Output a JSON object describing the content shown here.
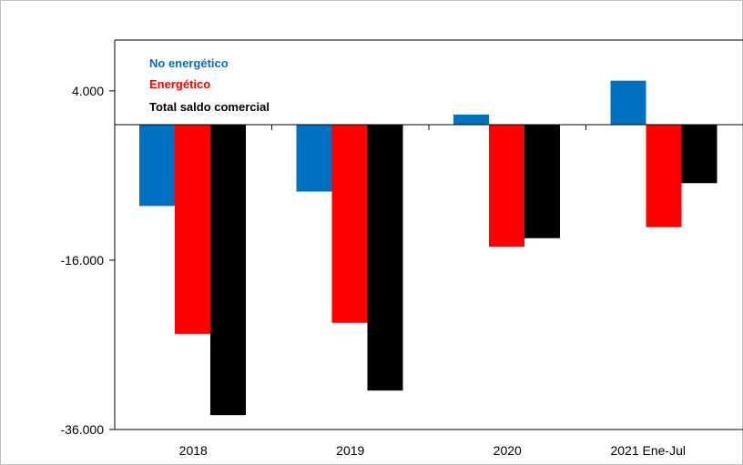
{
  "chart_data": {
    "type": "bar",
    "categories": [
      "2018",
      "2019",
      "2020",
      "2021 Ene-Jul"
    ],
    "series": [
      {
        "name": "No energético",
        "color": "#0070c0",
        "values": [
          -9.6,
          -7.9,
          1.2,
          5.2
        ]
      },
      {
        "name": "Energético",
        "color": "#ff0000",
        "values": [
          -24.7,
          -23.4,
          -14.4,
          -12.1
        ]
      },
      {
        "name": "Total saldo comercial",
        "color": "#000000",
        "values": [
          -34.3,
          -31.4,
          -13.4,
          -6.9
        ]
      }
    ],
    "yticks": [
      4,
      -16,
      -36
    ],
    "ytick_labels": [
      "4.000",
      "-16.000",
      "-36.000"
    ],
    "ylim": [
      -36,
      10
    ],
    "title": "",
    "xlabel": "",
    "ylabel": "",
    "legend_position": "top-left",
    "grid": false
  }
}
